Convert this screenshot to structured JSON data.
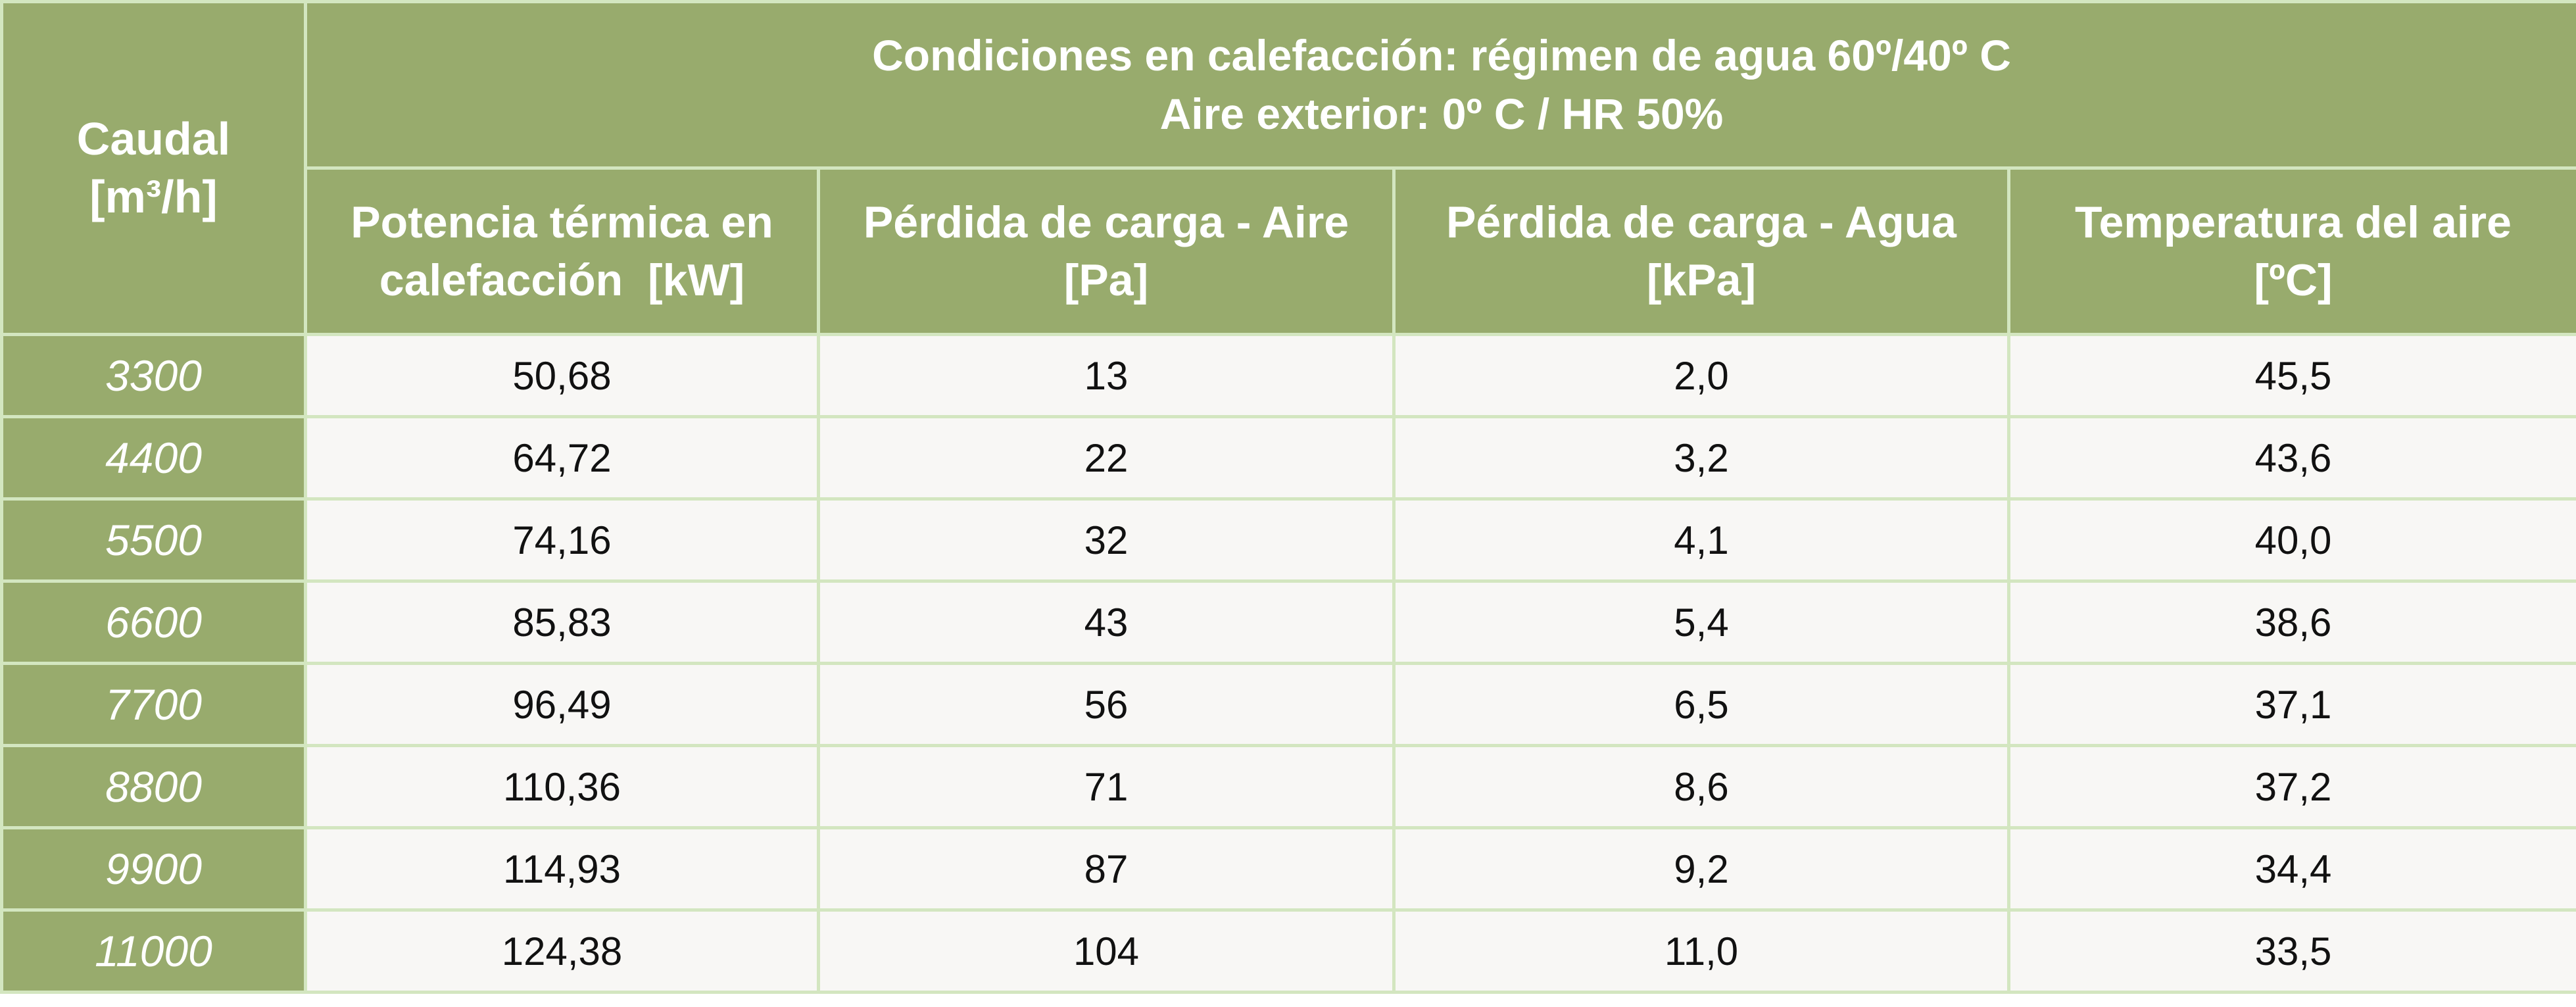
{
  "header": {
    "caudal_line1": "Caudal",
    "caudal_line2": "[m³/h]",
    "conditions_line1": "Condiciones en calefacción: régimen de agua 60º/40º C",
    "conditions_line2": "Aire exterior: 0º C / HR 50%",
    "columns": [
      {
        "line1": "Potencia térmica en",
        "line2": "calefacción  [kW]"
      },
      {
        "line1": "Pérdida de carga - Aire",
        "line2": "[Pa]"
      },
      {
        "line1": "Pérdida de carga - Agua",
        "line2": "[kPa]"
      },
      {
        "line1": "Temperatura del aire",
        "line2": "[ºC]"
      }
    ]
  },
  "rows": [
    {
      "caudal": "3300",
      "values": [
        "50,68",
        "13",
        "2,0",
        "45,5"
      ]
    },
    {
      "caudal": "4400",
      "values": [
        "64,72",
        "22",
        "3,2",
        "43,6"
      ]
    },
    {
      "caudal": "5500",
      "values": [
        "74,16",
        "32",
        "4,1",
        "40,0"
      ]
    },
    {
      "caudal": "6600",
      "values": [
        "85,83",
        "43",
        "5,4",
        "38,6"
      ]
    },
    {
      "caudal": "7700",
      "values": [
        "96,49",
        "56",
        "6,5",
        "37,1"
      ]
    },
    {
      "caudal": "8800",
      "values": [
        "110,36",
        "71",
        "8,6",
        "37,2"
      ]
    },
    {
      "caudal": "9900",
      "values": [
        "114,93",
        "87",
        "9,2",
        "34,4"
      ]
    },
    {
      "caudal": "11000",
      "values": [
        "124,38",
        "104",
        "11,0",
        "33,5"
      ]
    }
  ],
  "colors": {
    "header_bg": "#98ab6d",
    "grid_border": "#d3e6c0",
    "cell_bg": "#f8f7f5"
  }
}
